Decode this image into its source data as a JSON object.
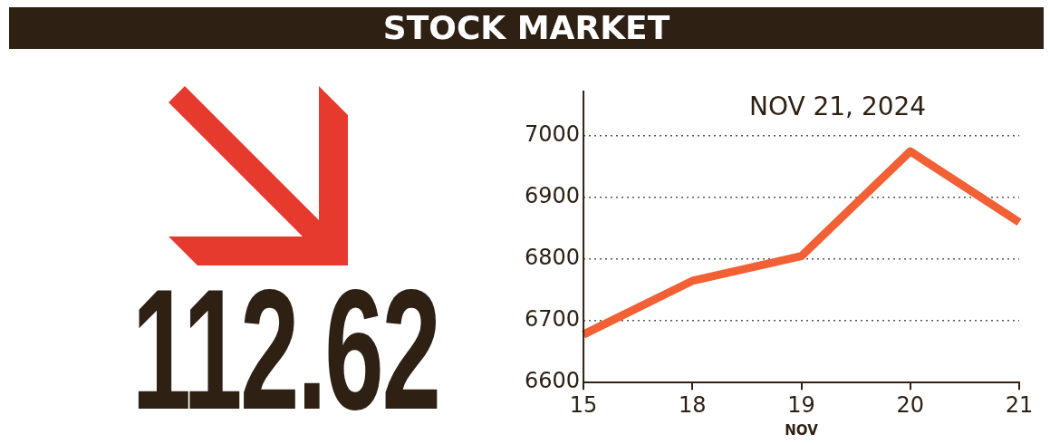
{
  "chart_data": {
    "type": "line",
    "title": "STOCK MARKET",
    "xlabel": "NOV",
    "annotations": [
      "NOV 21, 2024",
      "112.62"
    ],
    "categories": [
      "15",
      "18",
      "19",
      "20",
      "21"
    ],
    "values": [
      6678,
      6765,
      6805,
      6975,
      6860
    ],
    "color": "#f26035",
    "ylim": [
      6600,
      7000
    ],
    "yticks": [
      6600,
      6700,
      6800,
      6900,
      7000
    ],
    "grid": "y",
    "legend": false,
    "marker": "none",
    "line_style": "solid"
  }
}
